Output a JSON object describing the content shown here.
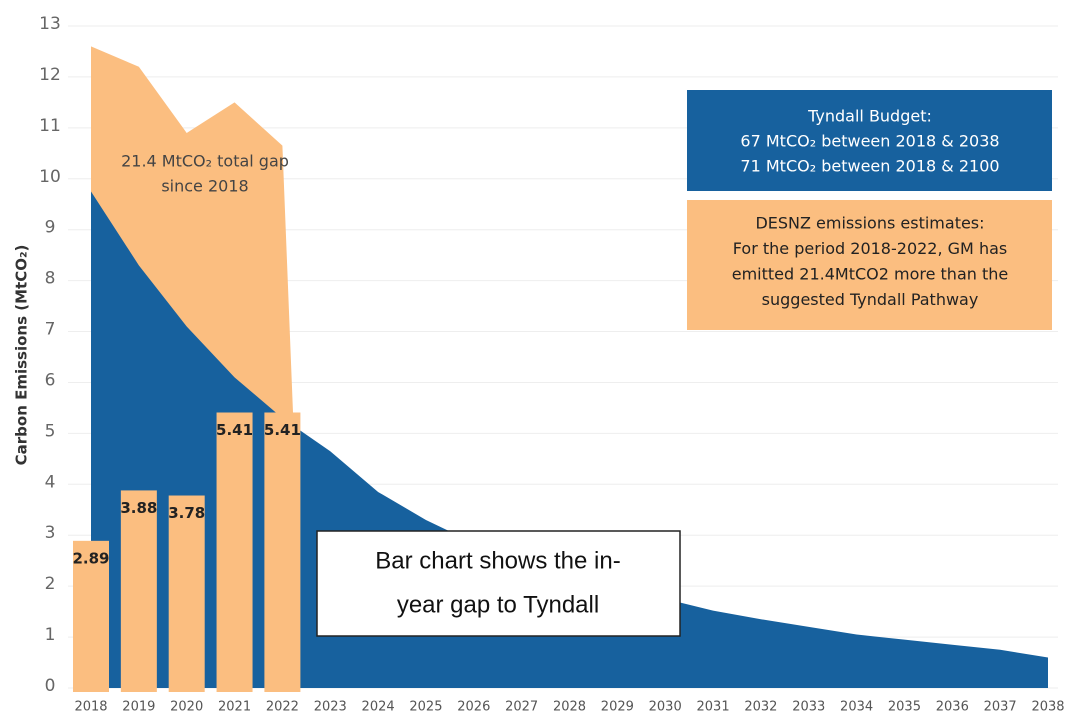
{
  "chart_data": {
    "type": "area",
    "y_label": "Carbon Emissions (MtCO₂)",
    "categories": [
      "2018",
      "2019",
      "2020",
      "2021",
      "2022",
      "2023",
      "2024",
      "2025",
      "2026",
      "2027",
      "2028",
      "2029",
      "2030",
      "2031",
      "2032",
      "2033",
      "2034",
      "2035",
      "2036",
      "2037",
      "2038"
    ],
    "ylim": [
      0,
      13
    ],
    "yticks": [
      0,
      1,
      2,
      3,
      4,
      5,
      6,
      7,
      8,
      9,
      10,
      11,
      12,
      13
    ],
    "grid": true,
    "emissions": {
      "color": "#fbbe80",
      "values": [
        12.6,
        12.2,
        10.9,
        11.5,
        10.65,
        null,
        null,
        null,
        null,
        null,
        null,
        null,
        null,
        null,
        null,
        null,
        null,
        null,
        null,
        null,
        null
      ]
    },
    "pathway": {
      "color": "#17619e",
      "values": [
        9.75,
        8.3,
        7.1,
        6.1,
        5.3,
        4.65,
        3.85,
        3.3,
        2.85,
        2.5,
        2.2,
        1.95,
        1.75,
        1.52,
        1.35,
        1.2,
        1.05,
        0.95,
        0.85,
        0.75,
        0.6
      ]
    },
    "gap_bars": {
      "color": "#fbbe80",
      "values": [
        2.89,
        3.88,
        3.78,
        5.41,
        5.41,
        null,
        null,
        null,
        null,
        null,
        null,
        null,
        null,
        null,
        null,
        null,
        null,
        null,
        null,
        null,
        null
      ]
    },
    "annotations": {
      "gap_note": [
        "21.4 MtCO₂ total gap",
        "since 2018"
      ],
      "budget_box": [
        "Tyndall Budget:",
        "67 MtCO₂ between 2018 & 2038",
        "71 MtCO₂ between 2018 & 2100"
      ],
      "desnz_box": [
        "DESNZ emissions estimates:",
        "For the period 2018-2022, GM has",
        "emitted 21.4MtCO2 more than the",
        "suggested Tyndall Pathway"
      ],
      "bar_note": [
        "Bar chart shows the in-",
        "year gap to Tyndall"
      ]
    }
  }
}
